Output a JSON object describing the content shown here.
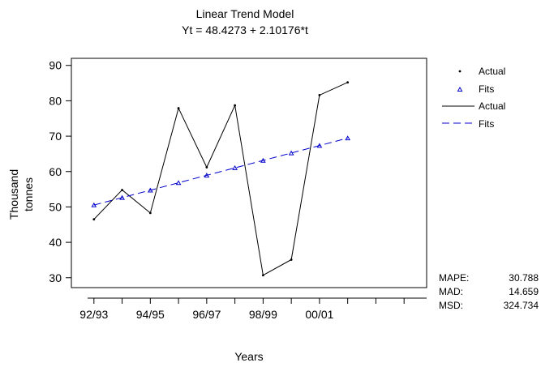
{
  "chart_data": {
    "type": "line",
    "title": "Linear Trend Model",
    "subtitle": "Yt = 48.4273 + 2.10176*t",
    "xlabel": "Years",
    "ylabel_lines": [
      "Thousand",
      "tonnes"
    ],
    "t": [
      1,
      2,
      3,
      4,
      5,
      6,
      7,
      8,
      9,
      10,
      11,
      12
    ],
    "xlim": [
      0.2,
      12.8
    ],
    "ylim": [
      27.2,
      92
    ],
    "yticks": [
      30,
      40,
      50,
      60,
      70,
      80,
      90
    ],
    "xtick_positions": [
      1,
      2,
      3,
      4,
      5,
      6,
      7,
      8,
      9,
      10,
      11,
      12
    ],
    "xtick_labels": [
      {
        "t": 1,
        "label": "92/93"
      },
      {
        "t": 3,
        "label": "94/95"
      },
      {
        "t": 5,
        "label": "96/97"
      },
      {
        "t": 7,
        "label": "98/99"
      },
      {
        "t": 9,
        "label": "00/01"
      }
    ],
    "series": [
      {
        "name": "Actual",
        "values": [
          46.5,
          54.8,
          48.3,
          77.9,
          61.2,
          78.7,
          30.7,
          35.1,
          81.6,
          85.2,
          null,
          null
        ]
      },
      {
        "name": "Fits",
        "values": [
          50.53,
          52.63,
          54.73,
          56.83,
          58.94,
          61.04,
          63.14,
          65.24,
          67.34,
          69.45,
          null,
          null
        ]
      }
    ],
    "legend": {
      "placement": "right",
      "entries": [
        {
          "label": "Actual",
          "kind": "marker-dot",
          "color": "#000000"
        },
        {
          "label": "Fits",
          "kind": "marker-triangle",
          "color": "#0000cc"
        },
        {
          "label": "Actual",
          "kind": "line-solid",
          "color": "#000000"
        },
        {
          "label": "Fits",
          "kind": "line-dashed",
          "color": "#0000cc"
        }
      ]
    },
    "stats": [
      {
        "label": "MAPE:",
        "value": "30.788"
      },
      {
        "label": "MAD:",
        "value": "14.659"
      },
      {
        "label": "MSD:",
        "value": "324.734"
      }
    ],
    "colors": {
      "actual": "#000000",
      "fits": "#0000cc"
    },
    "grid": false
  }
}
